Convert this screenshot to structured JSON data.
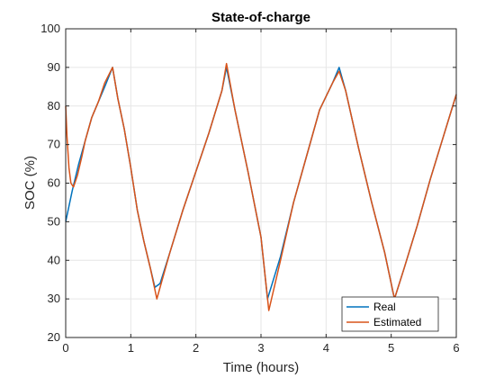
{
  "chart_data": {
    "type": "line",
    "title": "State-of-charge",
    "xlabel": "Time (hours)",
    "ylabel": "SOC (%)",
    "xlim": [
      0,
      6
    ],
    "ylim": [
      20,
      100
    ],
    "xticks": [
      "0",
      "1",
      "2",
      "3",
      "4",
      "5",
      "6"
    ],
    "yticks": [
      "20",
      "30",
      "40",
      "50",
      "60",
      "70",
      "80",
      "90",
      "100"
    ],
    "grid": true,
    "legend_position": "bottom-right",
    "series": [
      {
        "name": "Real",
        "color": "#0072BD",
        "x": [
          0,
          0.1,
          0.2,
          0.3,
          0.4,
          0.5,
          0.6,
          0.72,
          0.8,
          0.9,
          1.0,
          1.1,
          1.2,
          1.3,
          1.37,
          1.45,
          1.6,
          1.8,
          2.0,
          2.2,
          2.4,
          2.47,
          2.6,
          2.8,
          3.0,
          3.1,
          3.3,
          3.5,
          3.7,
          3.9,
          4.1,
          4.2,
          4.3,
          4.5,
          4.7,
          4.9,
          5.05,
          5.2,
          5.4,
          5.6,
          5.8,
          6.0
        ],
        "y": [
          50,
          58,
          65,
          71,
          77,
          81,
          85,
          90,
          82,
          74,
          64,
          53,
          45,
          38,
          33,
          34,
          42,
          53,
          63,
          73,
          84,
          90,
          79,
          63,
          46,
          30,
          41,
          55,
          67,
          79,
          86,
          90,
          84,
          69,
          55,
          42,
          30,
          38,
          49,
          61,
          72,
          83
        ]
      },
      {
        "name": "Estimated",
        "color": "#D95319",
        "x": [
          0,
          0.02,
          0.05,
          0.08,
          0.12,
          0.18,
          0.25,
          0.3,
          0.4,
          0.5,
          0.6,
          0.72,
          0.8,
          0.9,
          1.0,
          1.1,
          1.2,
          1.3,
          1.4,
          1.45,
          1.6,
          1.8,
          2.0,
          2.2,
          2.4,
          2.47,
          2.6,
          2.8,
          3.0,
          3.12,
          3.3,
          3.5,
          3.7,
          3.9,
          4.1,
          4.2,
          4.3,
          4.5,
          4.7,
          4.9,
          5.05,
          5.2,
          5.4,
          5.6,
          5.8,
          6.0
        ],
        "y": [
          80,
          72,
          64,
          60,
          59,
          62,
          67,
          71,
          77,
          81,
          86,
          90,
          82,
          74,
          64,
          53,
          45,
          38,
          30,
          33,
          42,
          53,
          63,
          73,
          84,
          91,
          79,
          63,
          46,
          27,
          40,
          55,
          67,
          79,
          86,
          89,
          84,
          69,
          55,
          42,
          30,
          38,
          49,
          61,
          72,
          83
        ]
      }
    ]
  }
}
